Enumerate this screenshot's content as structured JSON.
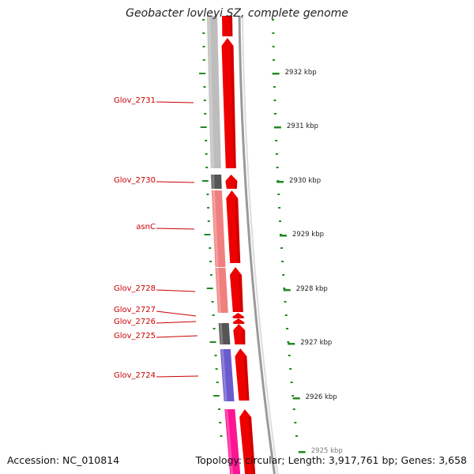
{
  "title": "Geobacter lovleyi SZ, complete genome",
  "footer": {
    "accession": "Accession: NC_010814",
    "topology": "Topology: circular; Length: 3,917,761 bp; Genes: 3,658"
  },
  "colors": {
    "forward_gene": "#ee0000",
    "label_red": "#cc0000",
    "tick_green": "#228b22",
    "grey_feature": "#bdbdbd",
    "dark_feature": "#555555",
    "salmon_feature": "#f08080",
    "purple_feature": "#6a5acd",
    "magenta_feature": "#ff1493"
  },
  "genes": [
    {
      "name": "Glov_2731",
      "kind": "grey"
    },
    {
      "name": "Glov_2730",
      "kind": "dark"
    },
    {
      "name": "asnC",
      "kind": "salmon"
    },
    {
      "name": "Glov_2728",
      "kind": "salmon"
    },
    {
      "name": "Glov_2727",
      "kind": "small"
    },
    {
      "name": "Glov_2726",
      "kind": "small"
    },
    {
      "name": "Glov_2725",
      "kind": "dark"
    },
    {
      "name": "Glov_2724",
      "kind": "purple"
    }
  ],
  "scale": [
    {
      "label": "2932 kbp"
    },
    {
      "label": "2931 kbp"
    },
    {
      "label": "2930 kbp"
    },
    {
      "label": "2929 kbp"
    },
    {
      "label": "2928 kbp"
    },
    {
      "label": "2927 kbp"
    },
    {
      "label": "2926 kbp"
    },
    {
      "label": "2925 kbp"
    }
  ]
}
